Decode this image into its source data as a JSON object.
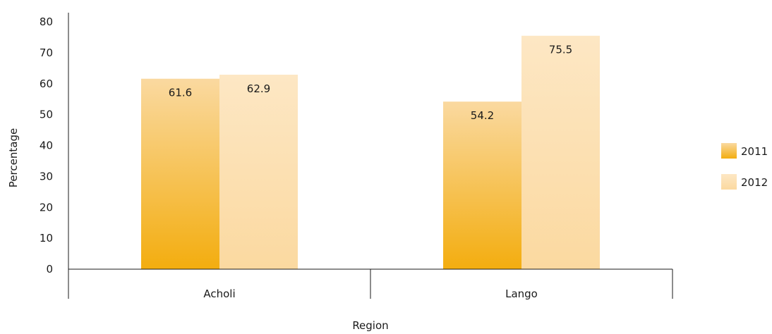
{
  "chart_data": {
    "type": "bar",
    "categories": [
      "Acholi",
      "Lango"
    ],
    "series": [
      {
        "name": "2011",
        "values": [
          61.6,
          54.2
        ],
        "color_top": "#fad9a0",
        "color_bottom": "#f3ad0f"
      },
      {
        "name": "2012",
        "values": [
          62.9,
          75.5
        ],
        "color_top": "#fde7c4",
        "color_bottom": "#fbd9a0"
      }
    ],
    "data_labels": [
      [
        "61.6",
        "54.2"
      ],
      [
        "62.9",
        "75.5"
      ]
    ],
    "xlabel": "Region",
    "ylabel": "Percentage",
    "ylim": [
      0,
      80
    ],
    "yticks": [
      0,
      10,
      20,
      30,
      40,
      50,
      60,
      70,
      80
    ],
    "ytick_labels": [
      "0",
      "10",
      "20",
      "30",
      "40",
      "50",
      "60",
      "70",
      "80"
    ],
    "grid": false,
    "legend_position": "right"
  }
}
